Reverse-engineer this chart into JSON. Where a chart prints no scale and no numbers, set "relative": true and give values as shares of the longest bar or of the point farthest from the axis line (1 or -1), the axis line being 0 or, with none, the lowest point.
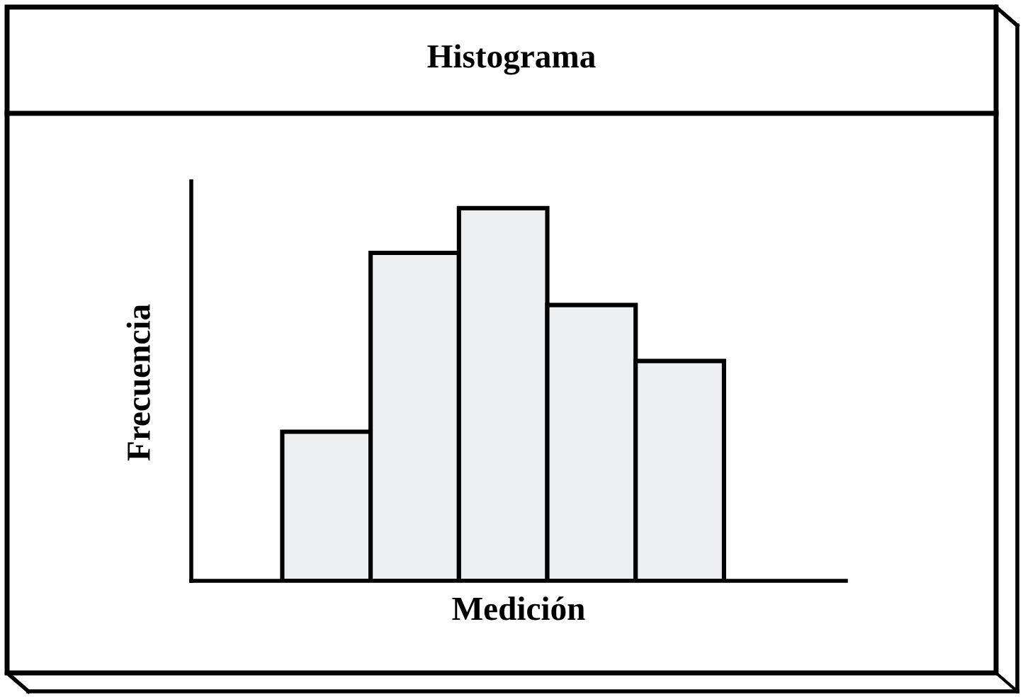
{
  "chart_data": {
    "type": "bar",
    "title": "Histograma",
    "xlabel": "Medición",
    "ylabel": "Frecuencia",
    "relative": true,
    "categories": [
      null,
      null,
      null,
      null,
      null
    ],
    "values": [
      0.4,
      0.88,
      1,
      0.74,
      0.59
    ],
    "color": "#eeeff1"
  }
}
